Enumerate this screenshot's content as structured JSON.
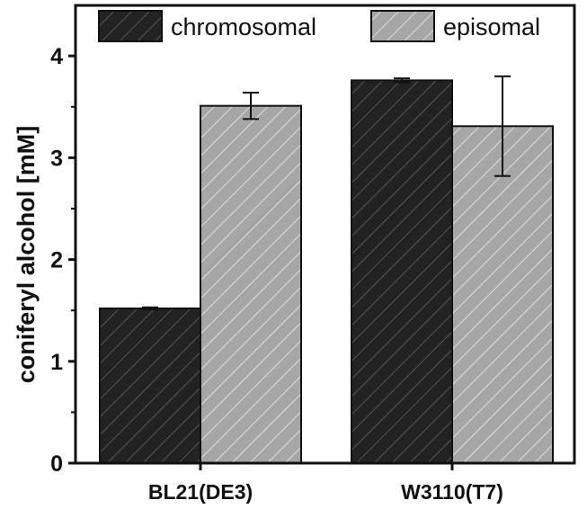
{
  "chart_data": {
    "type": "bar",
    "title": "",
    "xlabel": "",
    "ylabel": "coniferyl alcohol [mM]",
    "ylim": [
      0,
      4.5
    ],
    "yticks": [
      0,
      1,
      2,
      3,
      4
    ],
    "grid": false,
    "legend_position": "top",
    "categories": [
      "BL21(DE3)",
      "W3110(T7)"
    ],
    "series": [
      {
        "name": "chromosomal",
        "values": [
          1.52,
          3.76
        ],
        "errors": [
          0.01,
          0.02
        ],
        "color": "#222222",
        "hatch_color": "#555555"
      },
      {
        "name": "episomal",
        "values": [
          3.51,
          3.31
        ],
        "errors": [
          0.13,
          0.49
        ],
        "color": "#a6a6a6",
        "hatch_color": "#dddddd"
      }
    ]
  }
}
